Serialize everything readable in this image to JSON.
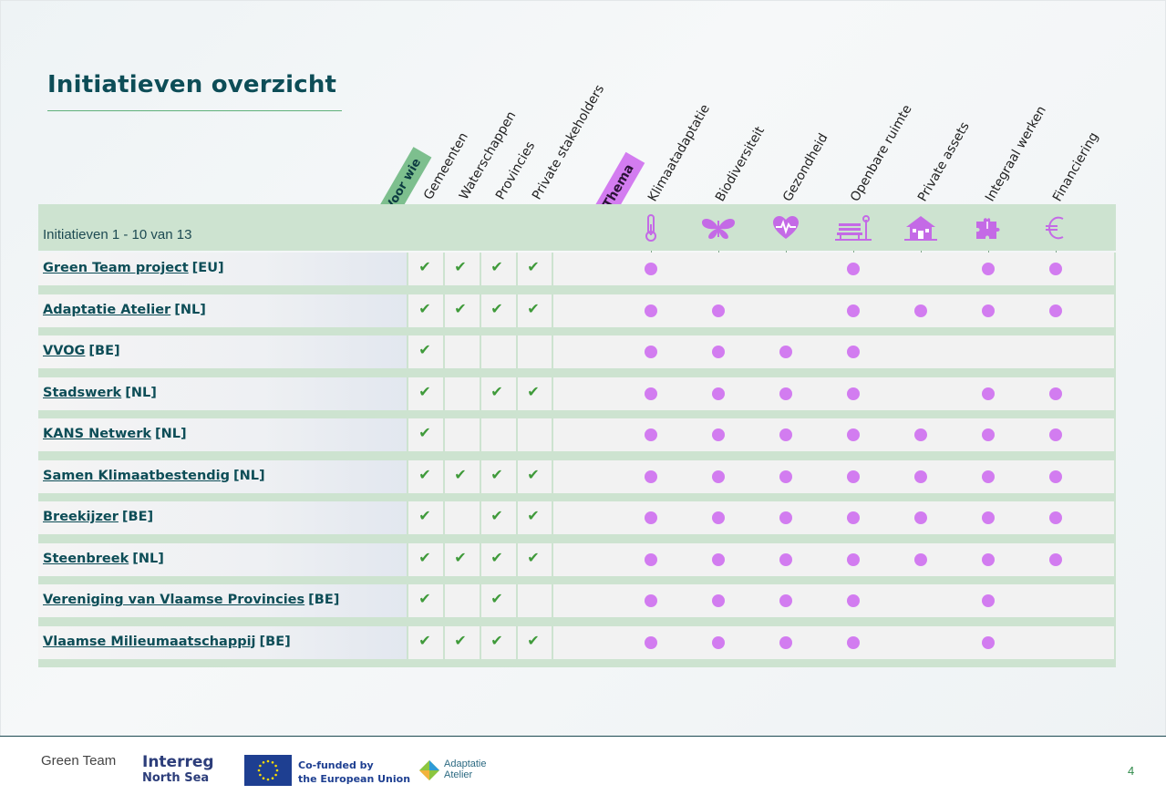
{
  "title": "Initiatieven overzicht",
  "badges": {
    "voor_wie": "Voor wie",
    "thema": "Thema"
  },
  "audience_headers": [
    "Gemeenten",
    "Waterschappen",
    "Provincies",
    "Private stakeholders"
  ],
  "theme_headers": [
    "Klimaatadaptatie",
    "Biodiversiteit",
    "Gezondheid",
    "Openbare ruimte",
    "Private assets",
    "Integraal werken",
    "Financiering"
  ],
  "theme_icons": [
    "thermometer-icon",
    "butterfly-icon",
    "heart-pulse-icon",
    "bench-icon",
    "house-icon",
    "puzzle-icon",
    "euro-icon"
  ],
  "count_label": "Initiatieven 1 - 10 van 13",
  "rows": [
    {
      "name": "Green Team project",
      "country": "[EU]",
      "audience": [
        1,
        1,
        1,
        1
      ],
      "themes": [
        1,
        0,
        0,
        1,
        0,
        1,
        1
      ]
    },
    {
      "name": "Adaptatie Atelier",
      "country": "[NL]",
      "audience": [
        1,
        1,
        1,
        1
      ],
      "themes": [
        1,
        1,
        0,
        1,
        1,
        1,
        1
      ]
    },
    {
      "name": "VVOG",
      "country": "[BE]",
      "audience": [
        1,
        0,
        0,
        0
      ],
      "themes": [
        1,
        1,
        1,
        1,
        0,
        0,
        0
      ]
    },
    {
      "name": "Stadswerk",
      "country": "[NL]",
      "audience": [
        1,
        0,
        1,
        1
      ],
      "themes": [
        1,
        1,
        1,
        1,
        0,
        1,
        1
      ]
    },
    {
      "name": "KANS Netwerk",
      "country": "[NL]",
      "audience": [
        1,
        0,
        0,
        0
      ],
      "themes": [
        1,
        1,
        1,
        1,
        1,
        1,
        1
      ]
    },
    {
      "name": "Samen Klimaatbestendig",
      "country": "[NL]",
      "audience": [
        1,
        1,
        1,
        1
      ],
      "themes": [
        1,
        1,
        1,
        1,
        1,
        1,
        1
      ]
    },
    {
      "name": "Breekijzer",
      "country": "[BE]",
      "audience": [
        1,
        0,
        1,
        1
      ],
      "themes": [
        1,
        1,
        1,
        1,
        1,
        1,
        1
      ]
    },
    {
      "name": "Steenbreek",
      "country": "[NL]",
      "audience": [
        1,
        1,
        1,
        1
      ],
      "themes": [
        1,
        1,
        1,
        1,
        1,
        1,
        1
      ]
    },
    {
      "name": "Vereniging van Vlaamse Provincies",
      "country": "[BE]",
      "audience": [
        1,
        0,
        1,
        0
      ],
      "themes": [
        1,
        1,
        1,
        1,
        0,
        1,
        0
      ]
    },
    {
      "name": "Vlaamse Milieumaatschappij",
      "country": "[BE]",
      "audience": [
        1,
        1,
        1,
        1
      ],
      "themes": [
        1,
        1,
        1,
        1,
        0,
        1,
        0
      ]
    }
  ],
  "check_glyph": "✔",
  "colors": {
    "accent_green": "#3f9a3a",
    "accent_purple": "#d27cf0",
    "band": "#cde3d0",
    "title": "#0d4d57"
  },
  "footer": {
    "green_team": "Green Team",
    "interreg": "Interreg",
    "north_sea": "North Sea",
    "cofunded_line1": "Co-funded by",
    "cofunded_line2": "the European Union",
    "aa_line1": "Adaptatie",
    "aa_line2": "Atelier",
    "page": "4"
  }
}
